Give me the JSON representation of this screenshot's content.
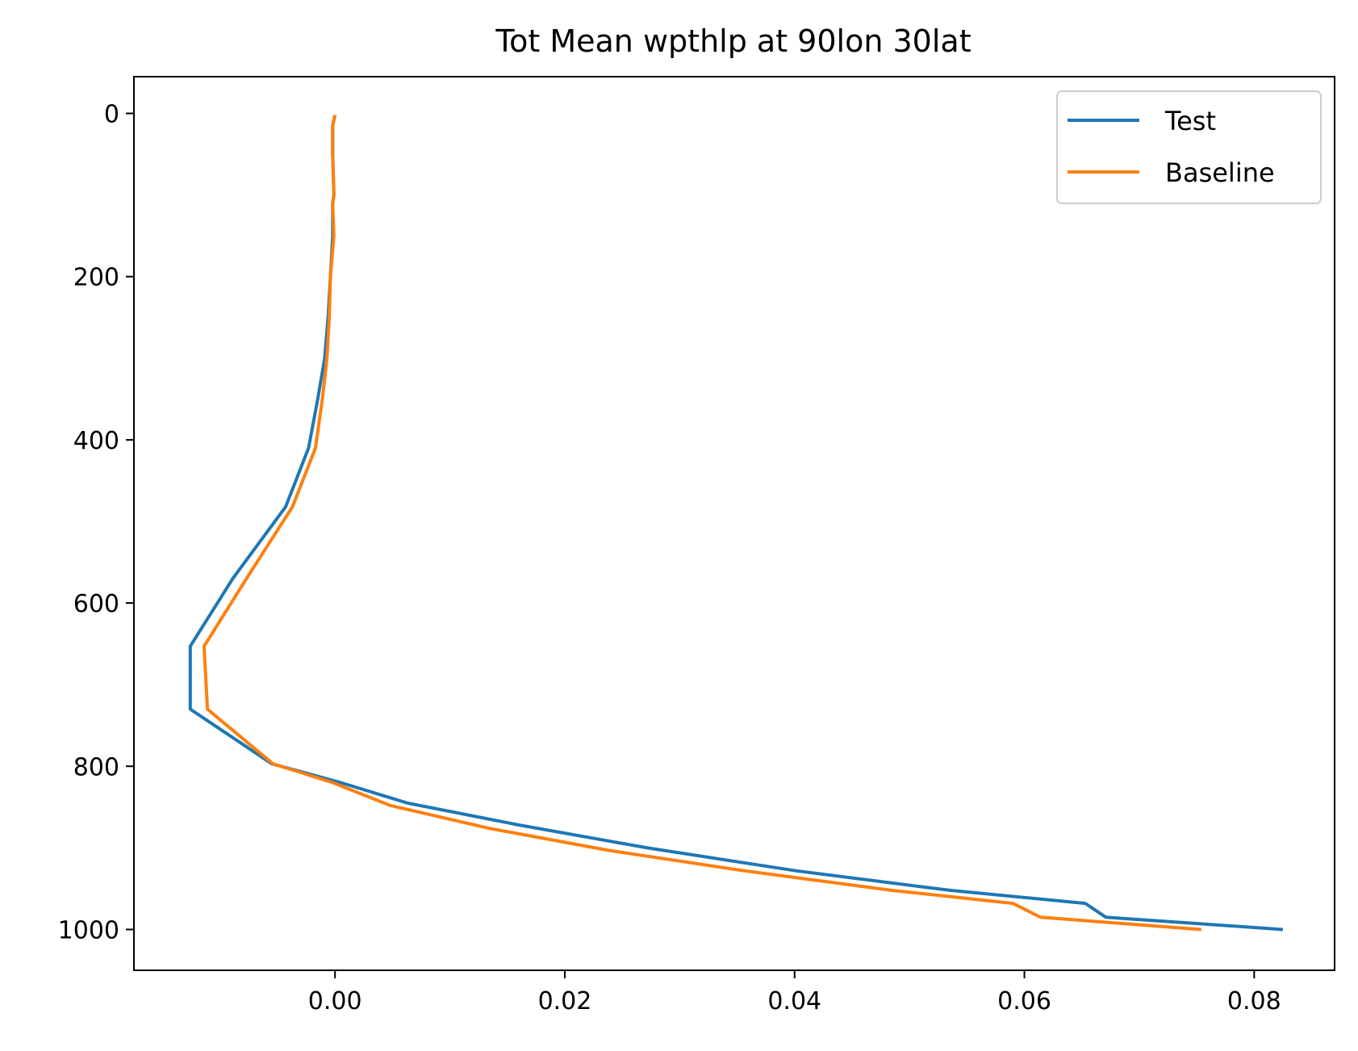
{
  "chart_data": {
    "type": "line",
    "title": "Tot Mean wpthlp at 90lon 30lat",
    "xlabel": "",
    "ylabel": "",
    "xlim": [
      -0.0175,
      0.087
    ],
    "ylim": [
      1050,
      -45
    ],
    "y_inverted": true,
    "grid": false,
    "legend_position": "top-right",
    "x_ticks": [
      {
        "value": 0.0,
        "label": "0.00"
      },
      {
        "value": 0.02,
        "label": "0.02"
      },
      {
        "value": 0.04,
        "label": "0.04"
      },
      {
        "value": 0.06,
        "label": "0.06"
      },
      {
        "value": 0.08,
        "label": "0.08"
      }
    ],
    "y_ticks": [
      {
        "value": 0,
        "label": "0"
      },
      {
        "value": 200,
        "label": "200"
      },
      {
        "value": 400,
        "label": "400"
      },
      {
        "value": 600,
        "label": "600"
      },
      {
        "value": 800,
        "label": "800"
      },
      {
        "value": 1000,
        "label": "1000"
      }
    ],
    "series": [
      {
        "name": "Test",
        "color": "#1f77b4",
        "points": [
          [
            0.0,
            2
          ],
          [
            -0.0002,
            15
          ],
          [
            -0.0002,
            50
          ],
          [
            -0.0001,
            100
          ],
          [
            -0.0002,
            110
          ],
          [
            -0.0002,
            150
          ],
          [
            -0.0004,
            200
          ],
          [
            -0.0006,
            250
          ],
          [
            -0.0009,
            300
          ],
          [
            -0.0015,
            350
          ],
          [
            -0.0023,
            410
          ],
          [
            -0.0043,
            482
          ],
          [
            -0.0089,
            570
          ],
          [
            -0.0126,
            653
          ],
          [
            -0.0126,
            730
          ],
          [
            -0.0055,
            797
          ],
          [
            0.0005,
            820
          ],
          [
            0.0063,
            845
          ],
          [
            0.016,
            872
          ],
          [
            0.0272,
            900
          ],
          [
            0.0401,
            928
          ],
          [
            0.0535,
            952
          ],
          [
            0.0653,
            968
          ],
          [
            0.0671,
            985
          ],
          [
            0.0825,
            1000
          ]
        ]
      },
      {
        "name": "Baseline",
        "color": "#ff7f0e",
        "points": [
          [
            0.0,
            2
          ],
          [
            -0.0002,
            15
          ],
          [
            -0.0002,
            50
          ],
          [
            -0.0001,
            100
          ],
          [
            -0.0002,
            110
          ],
          [
            -0.0001,
            150
          ],
          [
            -0.0004,
            200
          ],
          [
            -0.0005,
            250
          ],
          [
            -0.0007,
            300
          ],
          [
            -0.0011,
            350
          ],
          [
            -0.0017,
            410
          ],
          [
            -0.0037,
            482
          ],
          [
            -0.0077,
            570
          ],
          [
            -0.0114,
            653
          ],
          [
            -0.0111,
            730
          ],
          [
            -0.0054,
            797
          ],
          [
            -0.0002,
            820
          ],
          [
            0.0048,
            848
          ],
          [
            0.0134,
            876
          ],
          [
            0.0238,
            903
          ],
          [
            0.0356,
            928
          ],
          [
            0.0484,
            952
          ],
          [
            0.059,
            968
          ],
          [
            0.0614,
            985
          ],
          [
            0.0754,
            1000
          ]
        ]
      }
    ]
  }
}
